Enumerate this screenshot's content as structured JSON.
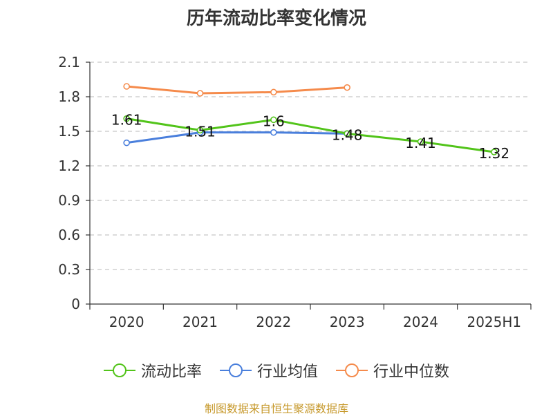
{
  "chart_data": {
    "type": "line",
    "title": "历年流动比率变化情况",
    "categories": [
      "2020",
      "2021",
      "2022",
      "2023",
      "2024",
      "2025H1"
    ],
    "ylim": [
      0,
      2.1
    ],
    "yticks": [
      "0",
      "0.3",
      "0.6",
      "0.9",
      "1.2",
      "1.5",
      "1.8",
      "2.1"
    ],
    "grid": true,
    "legend_position": "bottom",
    "series": [
      {
        "name": "流动比率",
        "color": "#52c41a",
        "values": [
          1.61,
          1.51,
          1.6,
          1.48,
          1.41,
          1.32
        ],
        "labels": [
          "1.61",
          "1.51",
          "1.6",
          "1.48",
          "1.41",
          "1.32"
        ]
      },
      {
        "name": "行业均值",
        "color": "#4a7fdc",
        "values": [
          1.4,
          1.49,
          1.49,
          1.48,
          null,
          null
        ]
      },
      {
        "name": "行业中位数",
        "color": "#f58b4c",
        "values": [
          1.89,
          1.83,
          1.84,
          1.88,
          null,
          null
        ]
      }
    ]
  },
  "source_note": "制图数据来自恒生聚源数据库"
}
